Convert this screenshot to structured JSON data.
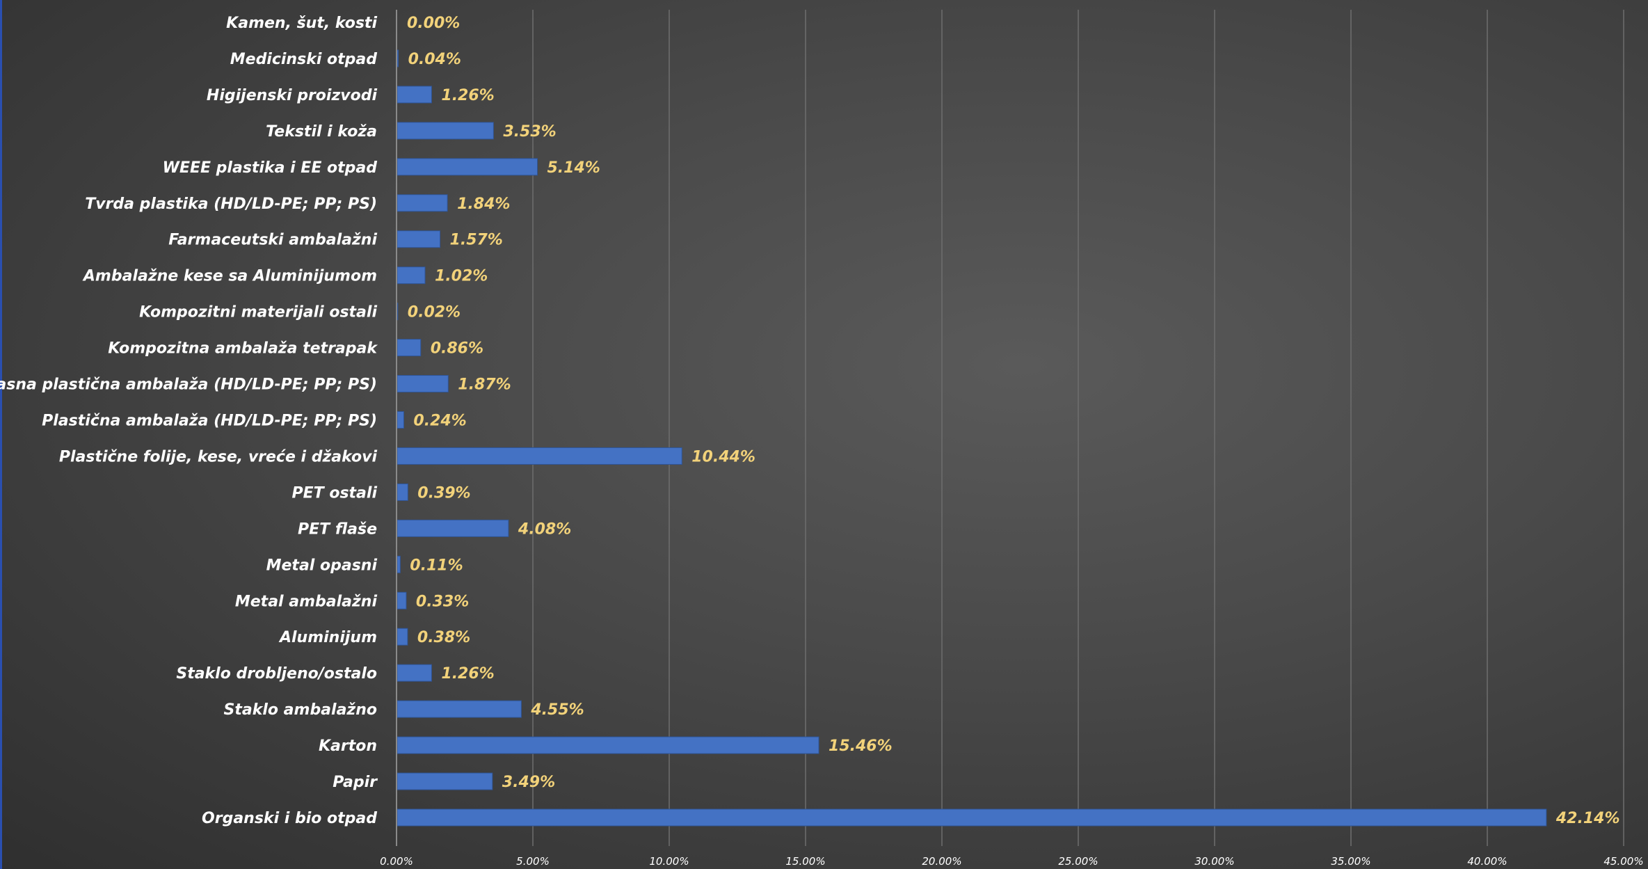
{
  "chart_data": {
    "type": "bar",
    "orientation": "horizontal",
    "categories": [
      "Kamen, šut, kosti",
      "Medicinski otpad",
      "Higijenski proizvodi",
      "Tekstil i koža",
      "WEEE plastika i EE otpad",
      "Tvrda plastika (HD/LD-PE; PP; PS)",
      "Farmaceutski ambalažni",
      "Ambalažne kese sa Aluminijumom",
      "Kompozitni materijali ostali",
      "Kompozitna ambalaža tetrapak",
      "Opasna plastična ambalaža (HD/LD-PE; PP; PS)",
      "Plastična ambalaža (HD/LD-PE; PP; PS)",
      "Plastične folije, kese, vreće i džakovi",
      "PET ostali",
      "PET flaše",
      "Metal opasni",
      "Metal ambalažni",
      "Aluminijum",
      "Staklo drobljeno/ostalo",
      "Staklo ambalažno",
      "Karton",
      "Papir",
      "Organski i bio otpad"
    ],
    "values": [
      0.0,
      0.04,
      1.26,
      3.53,
      5.14,
      1.84,
      1.57,
      1.02,
      0.02,
      0.86,
      1.87,
      0.24,
      10.44,
      0.39,
      4.08,
      0.11,
      0.33,
      0.38,
      1.26,
      4.55,
      15.46,
      3.49,
      42.14
    ],
    "data_labels": [
      "0.00%",
      "0.04%",
      "1.26%",
      "3.53%",
      "5.14%",
      "1.84%",
      "1.57%",
      "1.02%",
      "0.02%",
      "0.86%",
      "1.87%",
      "0.24%",
      "10.44%",
      "0.39%",
      "4.08%",
      "0.11%",
      "0.33%",
      "0.38%",
      "1.26%",
      "4.55%",
      "15.46%",
      "3.49%",
      "42.14%"
    ],
    "x_ticks": [
      0,
      5,
      10,
      15,
      20,
      25,
      30,
      35,
      40,
      45
    ],
    "x_tick_labels": [
      "0.00%",
      "5.00%",
      "10.00%",
      "15.00%",
      "20.00%",
      "25.00%",
      "30.00%",
      "35.00%",
      "40.00%",
      "45.00%"
    ],
    "xlim": [
      0,
      45
    ],
    "title": "",
    "xlabel": "",
    "ylabel": "",
    "grid": "vertical",
    "legend": "none",
    "colors": {
      "bar": "#4472c4",
      "bar_edge": "#2f5597",
      "data_label": "#f2d27a",
      "category_label": "#ffffff",
      "tick_label": "#ffffff",
      "grid": "#6e6e6e",
      "axis_line": "#8a8a8a"
    }
  }
}
